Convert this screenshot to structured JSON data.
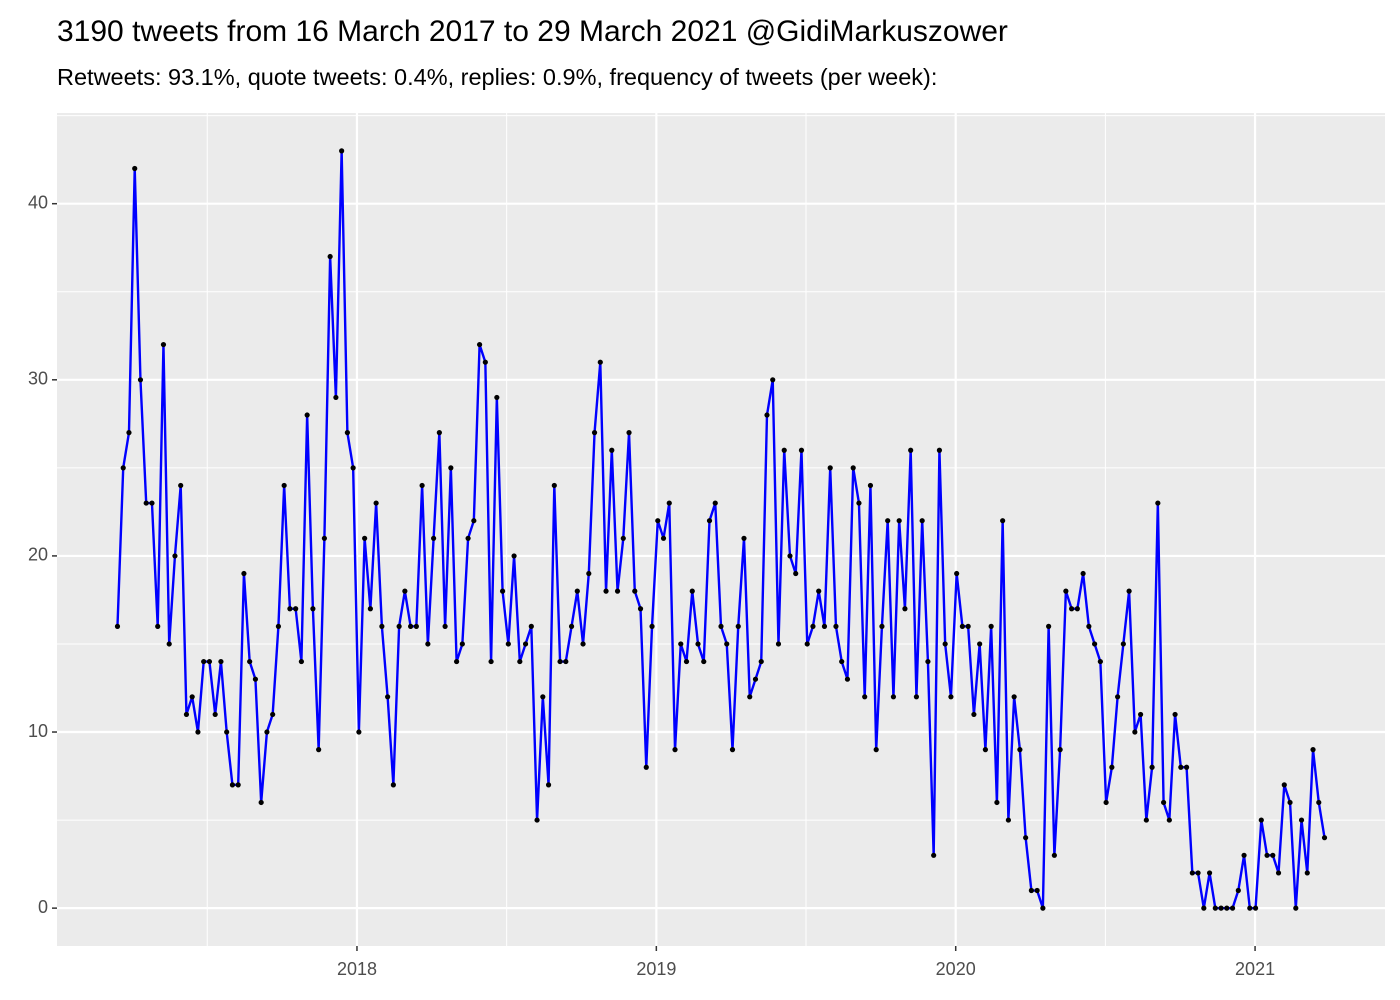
{
  "chart_data": {
    "type": "line",
    "title": "3190 tweets from 16 March 2017 to 29 March 2021 @GidiMarkuszower",
    "subtitle": "Retweets: 93.1%, quote tweets: 0.4%, replies: 0.9%, frequency of tweets (per week):",
    "x": [
      2017.2,
      2017.2192,
      2017.2384,
      2017.2576,
      2017.2768,
      2017.296,
      2017.3152,
      2017.3344,
      2017.3536,
      2017.3728,
      2017.392,
      2017.4112,
      2017.4304,
      2017.4496,
      2017.4688,
      2017.488,
      2017.5072,
      2017.5264,
      2017.5456,
      2017.5648,
      2017.584,
      2017.6032,
      2017.6224,
      2017.6416,
      2017.6608,
      2017.68,
      2017.6992,
      2017.7184,
      2017.7376,
      2017.7568,
      2017.776,
      2017.7952,
      2017.8144,
      2017.8336,
      2017.8528,
      2017.872,
      2017.8912,
      2017.9104,
      2017.9296,
      2017.9488,
      2017.968,
      2017.9872,
      2018.0064,
      2018.0256,
      2018.0448,
      2018.064,
      2018.0832,
      2018.1024,
      2018.1216,
      2018.1408,
      2018.16,
      2018.1792,
      2018.1984,
      2018.2176,
      2018.2368,
      2018.256,
      2018.2752,
      2018.2944,
      2018.3136,
      2018.3328,
      2018.352,
      2018.3712,
      2018.3904,
      2018.4096,
      2018.4288,
      2018.448,
      2018.4672,
      2018.4864,
      2018.5056,
      2018.5248,
      2018.544,
      2018.5632,
      2018.5824,
      2018.6016,
      2018.6208,
      2018.64,
      2018.6592,
      2018.6784,
      2018.6976,
      2018.7168,
      2018.736,
      2018.7552,
      2018.7744,
      2018.7936,
      2018.8128,
      2018.832,
      2018.8512,
      2018.8704,
      2018.8896,
      2018.9088,
      2018.928,
      2018.9472,
      2018.9664,
      2018.9856,
      2019.0048,
      2019.024,
      2019.0432,
      2019.0624,
      2019.0816,
      2019.1008,
      2019.12,
      2019.1392,
      2019.1584,
      2019.1776,
      2019.1968,
      2019.216,
      2019.2352,
      2019.2544,
      2019.2736,
      2019.2928,
      2019.312,
      2019.3312,
      2019.3504,
      2019.3696,
      2019.3888,
      2019.408,
      2019.4272,
      2019.4464,
      2019.4656,
      2019.4848,
      2019.504,
      2019.5232,
      2019.5424,
      2019.5616,
      2019.5808,
      2019.6,
      2019.6192,
      2019.6384,
      2019.6576,
      2019.6768,
      2019.696,
      2019.7152,
      2019.7344,
      2019.7536,
      2019.7728,
      2019.792,
      2019.8112,
      2019.8304,
      2019.8496,
      2019.8688,
      2019.888,
      2019.9072,
      2019.9264,
      2019.9456,
      2019.9648,
      2019.984,
      2020.0032,
      2020.0224,
      2020.0416,
      2020.0608,
      2020.08,
      2020.0992,
      2020.1184,
      2020.1376,
      2020.1568,
      2020.176,
      2020.1952,
      2020.2144,
      2020.2336,
      2020.2528,
      2020.272,
      2020.2912,
      2020.3104,
      2020.3296,
      2020.3488,
      2020.368,
      2020.3872,
      2020.4064,
      2020.4256,
      2020.4448,
      2020.464,
      2020.4832,
      2020.5024,
      2020.5216,
      2020.5408,
      2020.56,
      2020.5792,
      2020.5984,
      2020.6176,
      2020.6368,
      2020.656,
      2020.6752,
      2020.6944,
      2020.7136,
      2020.7328,
      2020.752,
      2020.7712,
      2020.7904,
      2020.8096,
      2020.8288,
      2020.848,
      2020.8672,
      2020.8864,
      2020.9056,
      2020.9248,
      2020.944,
      2020.9632,
      2020.9824,
      2021.0016,
      2021.0208,
      2021.04,
      2021.0592,
      2021.0784,
      2021.0976,
      2021.1168,
      2021.136,
      2021.1552,
      2021.1744,
      2021.1936,
      2021.2128,
      2021.232
    ],
    "values": [
      16,
      25,
      27,
      42,
      30,
      23,
      23,
      16,
      32,
      15,
      20,
      24,
      11,
      12,
      10,
      14,
      14,
      11,
      14,
      10,
      7,
      7,
      19,
      14,
      13,
      6,
      10,
      11,
      16,
      24,
      17,
      17,
      14,
      28,
      17,
      9,
      21,
      37,
      29,
      43,
      27,
      25,
      10,
      21,
      17,
      23,
      16,
      12,
      7,
      16,
      18,
      16,
      16,
      24,
      15,
      21,
      27,
      16,
      25,
      14,
      15,
      21,
      22,
      32,
      31,
      14,
      29,
      18,
      15,
      20,
      14,
      15,
      16,
      5,
      12,
      7,
      24,
      14,
      14,
      16,
      18,
      15,
      19,
      27,
      31,
      18,
      26,
      18,
      21,
      27,
      18,
      17,
      8,
      16,
      22,
      21,
      23,
      9,
      15,
      14,
      18,
      15,
      14,
      22,
      23,
      16,
      15,
      9,
      16,
      21,
      12,
      13,
      14,
      28,
      30,
      15,
      26,
      20,
      19,
      26,
      15,
      16,
      18,
      16,
      25,
      16,
      14,
      13,
      25,
      23,
      12,
      24,
      9,
      16,
      22,
      12,
      22,
      17,
      26,
      12,
      22,
      14,
      3,
      26,
      15,
      12,
      19,
      16,
      16,
      11,
      15,
      9,
      16,
      6,
      22,
      5,
      12,
      9,
      4,
      1,
      1,
      0,
      16,
      3,
      9,
      18,
      17,
      17,
      19,
      16,
      15,
      14,
      6,
      8,
      12,
      15,
      18,
      10,
      11,
      5,
      8,
      23,
      6,
      5,
      11,
      8,
      8,
      2,
      2,
      0,
      2,
      0,
      0,
      0,
      0,
      1,
      3,
      0,
      0,
      5,
      3,
      3,
      2,
      7,
      6,
      0,
      5,
      2,
      9,
      6,
      4
    ],
    "color": "#0000ff",
    "point_color": "#000000",
    "xlim": [
      2016.998,
      2021.434
    ],
    "xticks": [
      2018,
      2019,
      2020,
      2021
    ],
    "ylim": [
      -2.15,
      45.15
    ],
    "yticks": [
      0,
      10,
      20,
      30,
      40
    ],
    "grid": true,
    "panel_background": "#ebebeb"
  }
}
